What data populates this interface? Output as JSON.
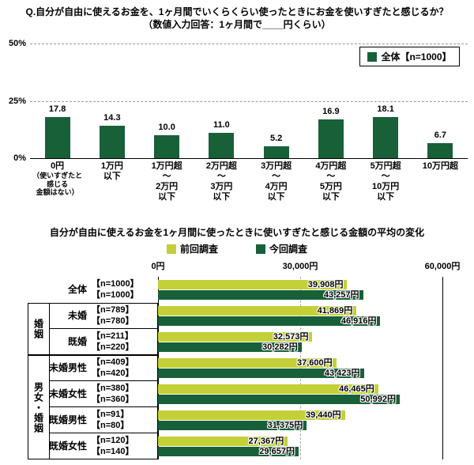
{
  "accent_colors": {
    "dark_green": "#186038",
    "light_green": "#C3D037"
  },
  "chart_data": [
    {
      "type": "bar",
      "title": "Q.自分が自由に使えるお金を、1ヶ月間でいくらくらい使ったときにお金を使いすぎたと感じるか？",
      "subtitle": "（数値入力回答：1ヶ月間で____円くらい）",
      "legend": [
        {
          "label": "全体【n=1000】",
          "color": "dark_green"
        }
      ],
      "ylim": [
        0,
        50
      ],
      "yticks": [
        {
          "value": 50,
          "label": "50%"
        },
        {
          "value": 25,
          "label": "25%"
        },
        {
          "value": 0,
          "label": "0%"
        }
      ],
      "categories": [
        {
          "lines": [
            "0円",
            "（使いすぎたと",
            "感じる",
            "金額はない）"
          ],
          "small_from": 1
        },
        {
          "lines": [
            "1万円",
            "以下"
          ]
        },
        {
          "lines": [
            "1万円超",
            "～",
            "2万円",
            "以下"
          ]
        },
        {
          "lines": [
            "2万円超",
            "～",
            "3万円",
            "以下"
          ]
        },
        {
          "lines": [
            "3万円超",
            "～",
            "4万円",
            "以下"
          ]
        },
        {
          "lines": [
            "4万円超",
            "～",
            "5万円",
            "以下"
          ]
        },
        {
          "lines": [
            "5万円超",
            "～",
            "10万円",
            "以下"
          ]
        },
        {
          "lines": [
            "10万円超"
          ]
        }
      ],
      "values": [
        17.8,
        14.3,
        10.0,
        11.0,
        5.2,
        16.9,
        18.1,
        6.7
      ],
      "value_labels": [
        "17.8",
        "14.3",
        "10.0",
        "11.0",
        "5.2",
        "16.9",
        "18.1",
        "6.7"
      ]
    },
    {
      "type": "bar-horizontal",
      "title": "自分が自由に使えるお金を1ヶ月間に使ったときに使いすぎたと感じる金額の平均の変化",
      "legend": [
        {
          "label": "前回調査",
          "color": "light_green"
        },
        {
          "label": "今回調査",
          "color": "dark_green"
        }
      ],
      "xlim": [
        0,
        60000
      ],
      "xticks": [
        {
          "value": 0,
          "label": "0円"
        },
        {
          "value": 30000,
          "label": "30,000円"
        },
        {
          "value": 60000,
          "label": "60,000円"
        }
      ],
      "series_names": [
        "前回調査",
        "今回調査"
      ],
      "rows": [
        {
          "group": "",
          "label": "全体",
          "n": [
            "【n=1000】",
            "【n=1000】"
          ],
          "values": [
            39908,
            43257
          ],
          "value_labels": [
            "39,908円",
            "43,257円"
          ]
        },
        {
          "group": "婚姻",
          "label": "未婚",
          "n": [
            "【n=789】",
            "【n=780】"
          ],
          "values": [
            41869,
            46916
          ],
          "value_labels": [
            "41,869円",
            "46,916円"
          ]
        },
        {
          "group": "婚姻",
          "label": "既婚",
          "n": [
            "【n=211】",
            "【n=220】"
          ],
          "values": [
            32573,
            30282
          ],
          "value_labels": [
            "32,573円",
            "30,282円"
          ]
        },
        {
          "group": "男女・婚姻",
          "label": "未婚男性",
          "n": [
            "【n=409】",
            "【n=420】"
          ],
          "values": [
            37600,
            43423
          ],
          "value_labels": [
            "37,600円",
            "43,423円"
          ]
        },
        {
          "group": "男女・婚姻",
          "label": "未婚女性",
          "n": [
            "【n=380】",
            "【n=360】"
          ],
          "values": [
            46465,
            50992
          ],
          "value_labels": [
            "46,465円",
            "50,992円"
          ]
        },
        {
          "group": "男女・婚姻",
          "label": "既婚男性",
          "n": [
            "【n=91】",
            "【n=80】"
          ],
          "values": [
            39440,
            31375
          ],
          "value_labels": [
            "39,440円",
            "31,375円"
          ]
        },
        {
          "group": "男女・婚姻",
          "label": "既婚女性",
          "n": [
            "【n=120】",
            "【n=140】"
          ],
          "values": [
            27367,
            29657
          ],
          "value_labels": [
            "27,367円",
            "29,657円"
          ]
        }
      ]
    }
  ]
}
